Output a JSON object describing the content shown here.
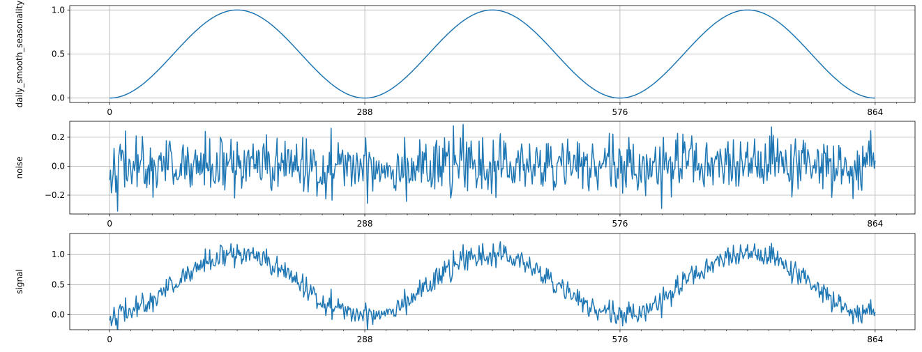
{
  "chart_data": [
    {
      "type": "line",
      "name": "seasonality-panel",
      "ylabel": "daily_smooth_seasonality",
      "xlabel": "",
      "title": "",
      "xlim": [
        -45,
        909
      ],
      "ylim": [
        -0.05,
        1.05
      ],
      "xticks": [
        0,
        288,
        576,
        864
      ],
      "xtick_labels": [
        "0",
        "288",
        "576",
        "864"
      ],
      "yticks": [
        0.0,
        0.5,
        1.0
      ],
      "ytick_labels": [
        "0.0",
        "0.5",
        "1.0"
      ],
      "minor_xtick_step": 24,
      "grid": true,
      "color": "#1f77b4",
      "series": [
        {
          "generator": "seasonal",
          "n_points": 865,
          "period": 288,
          "formula": "0.5 - 0.5*cos(2*pi*x/288)",
          "x_start": 0,
          "x_end": 864
        }
      ]
    },
    {
      "type": "line",
      "name": "noise-panel",
      "ylabel": "noise",
      "xlabel": "",
      "title": "",
      "xlim": [
        -45,
        909
      ],
      "ylim": [
        -0.33,
        0.31
      ],
      "xticks": [
        0,
        288,
        576,
        864
      ],
      "xtick_labels": [
        "0",
        "288",
        "576",
        "864"
      ],
      "yticks": [
        -0.2,
        0.0,
        0.2
      ],
      "ytick_labels": [
        "−0.2",
        "0.0",
        "0.2"
      ],
      "minor_xtick_step": 24,
      "grid": true,
      "color": "#1f77b4",
      "series": [
        {
          "generator": "noise",
          "n_points": 865,
          "std": 0.1,
          "seed": 42,
          "x_start": 0,
          "x_end": 864
        }
      ]
    },
    {
      "type": "line",
      "name": "signal-panel",
      "ylabel": "signal",
      "xlabel": "",
      "title": "",
      "xlim": [
        -45,
        909
      ],
      "ylim": [
        -0.25,
        1.35
      ],
      "xticks": [
        0,
        288,
        576,
        864
      ],
      "xtick_labels": [
        "0",
        "288",
        "576",
        "864"
      ],
      "yticks": [
        0.0,
        0.5,
        1.0
      ],
      "ytick_labels": [
        "0.0",
        "0.5",
        "1.0"
      ],
      "minor_xtick_step": 24,
      "grid": true,
      "color": "#1f77b4",
      "series": [
        {
          "generator": "sum",
          "n_points": 865,
          "formula": "seasonality + noise",
          "x_start": 0,
          "x_end": 864
        }
      ]
    }
  ]
}
